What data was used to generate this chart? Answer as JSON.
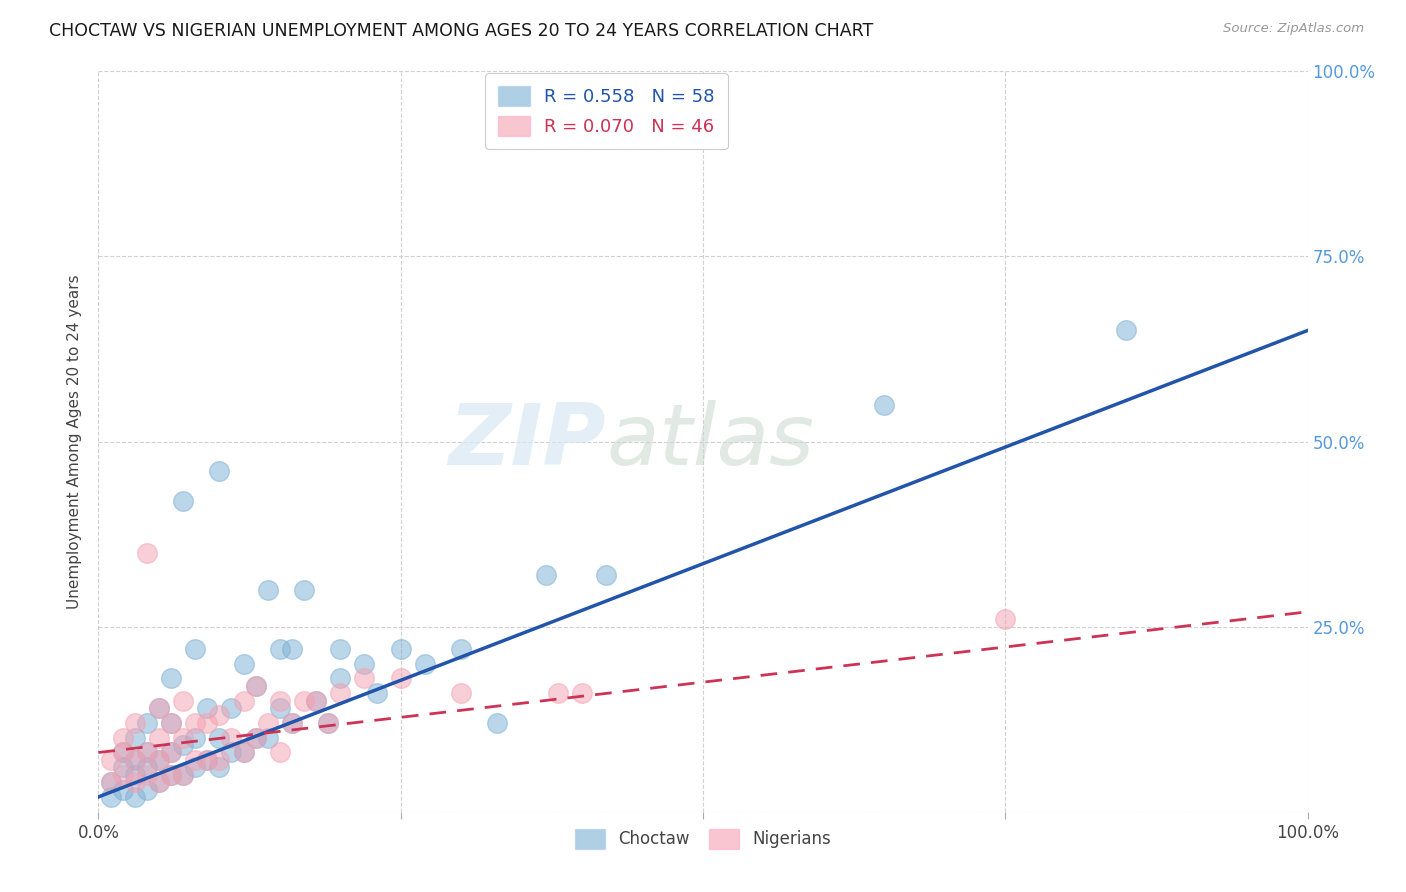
{
  "title": "CHOCTAW VS NIGERIAN UNEMPLOYMENT AMONG AGES 20 TO 24 YEARS CORRELATION CHART",
  "source": "Source: ZipAtlas.com",
  "ylabel": "Unemployment Among Ages 20 to 24 years",
  "watermark_zip": "ZIP",
  "watermark_atlas": "atlas",
  "legend_choctaw": "R = 0.558   N = 58",
  "legend_nigerian": "R = 0.070   N = 46",
  "choctaw_color": "#7BAFD4",
  "nigerian_color": "#F4A0B0",
  "trend_choctaw_color": "#2255AA",
  "trend_nigerian_color": "#CC3355",
  "background_color": "#FFFFFF",
  "grid_color": "#CCCCCC",
  "xlim": [
    0.0,
    1.0
  ],
  "ylim": [
    0.0,
    1.0
  ],
  "choctaw_x": [
    0.01,
    0.01,
    0.02,
    0.02,
    0.02,
    0.03,
    0.03,
    0.03,
    0.03,
    0.04,
    0.04,
    0.04,
    0.04,
    0.05,
    0.05,
    0.05,
    0.06,
    0.06,
    0.06,
    0.06,
    0.07,
    0.07,
    0.07,
    0.08,
    0.08,
    0.08,
    0.09,
    0.09,
    0.1,
    0.1,
    0.1,
    0.11,
    0.11,
    0.12,
    0.12,
    0.13,
    0.13,
    0.14,
    0.14,
    0.15,
    0.15,
    0.16,
    0.16,
    0.17,
    0.18,
    0.19,
    0.2,
    0.2,
    0.22,
    0.23,
    0.25,
    0.27,
    0.3,
    0.33,
    0.37,
    0.42,
    0.65,
    0.85
  ],
  "choctaw_y": [
    0.02,
    0.04,
    0.03,
    0.06,
    0.08,
    0.02,
    0.05,
    0.07,
    0.1,
    0.03,
    0.06,
    0.08,
    0.12,
    0.04,
    0.07,
    0.14,
    0.05,
    0.08,
    0.12,
    0.18,
    0.05,
    0.09,
    0.42,
    0.06,
    0.1,
    0.22,
    0.07,
    0.14,
    0.06,
    0.1,
    0.46,
    0.08,
    0.14,
    0.08,
    0.2,
    0.1,
    0.17,
    0.3,
    0.1,
    0.14,
    0.22,
    0.12,
    0.22,
    0.3,
    0.15,
    0.12,
    0.18,
    0.22,
    0.2,
    0.16,
    0.22,
    0.2,
    0.22,
    0.12,
    0.32,
    0.32,
    0.55,
    0.65
  ],
  "nigerian_x": [
    0.01,
    0.01,
    0.02,
    0.02,
    0.02,
    0.03,
    0.03,
    0.03,
    0.04,
    0.04,
    0.04,
    0.05,
    0.05,
    0.05,
    0.05,
    0.06,
    0.06,
    0.06,
    0.07,
    0.07,
    0.07,
    0.08,
    0.08,
    0.09,
    0.09,
    0.1,
    0.1,
    0.11,
    0.12,
    0.12,
    0.13,
    0.13,
    0.14,
    0.15,
    0.15,
    0.16,
    0.17,
    0.18,
    0.19,
    0.2,
    0.22,
    0.25,
    0.3,
    0.38,
    0.4,
    0.75
  ],
  "nigerian_y": [
    0.04,
    0.07,
    0.05,
    0.08,
    0.1,
    0.04,
    0.07,
    0.12,
    0.05,
    0.08,
    0.35,
    0.04,
    0.07,
    0.1,
    0.14,
    0.05,
    0.08,
    0.12,
    0.05,
    0.1,
    0.15,
    0.07,
    0.12,
    0.07,
    0.12,
    0.07,
    0.13,
    0.1,
    0.08,
    0.15,
    0.1,
    0.17,
    0.12,
    0.08,
    0.15,
    0.12,
    0.15,
    0.15,
    0.12,
    0.16,
    0.18,
    0.18,
    0.16,
    0.16,
    0.16,
    0.26
  ],
  "trend_choctaw_x0": 0.0,
  "trend_choctaw_y0": 0.02,
  "trend_choctaw_x1": 1.0,
  "trend_choctaw_y1": 0.65,
  "trend_nigerian_x0": 0.0,
  "trend_nigerian_y0": 0.08,
  "trend_nigerian_x1": 1.0,
  "trend_nigerian_y1": 0.27,
  "xticks": [
    0.0,
    0.25,
    0.5,
    0.75,
    1.0
  ],
  "xticklabels": [
    "0.0%",
    "",
    "",
    "",
    "100.0%"
  ],
  "yticks_right": [
    0.0,
    0.25,
    0.5,
    0.75,
    1.0
  ],
  "yticklabels_right": [
    "",
    "25.0%",
    "50.0%",
    "75.0%",
    "100.0%"
  ],
  "right_tick_color": "#5599DD"
}
